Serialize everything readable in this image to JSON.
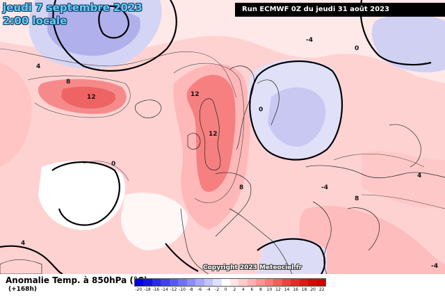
{
  "header": {
    "date": "jeudi 7 septembre 2023",
    "time": "2:00 locale",
    "run": "Run ECMWF 0Z du jeudi 31 août 2023"
  },
  "credit": "Copyright 2023 Meteociel.fr",
  "footer": {
    "title": "Anomalie Temp. à 850hPa (°C)",
    "subtitle": "(+168h)"
  },
  "legend": {
    "ticks": [
      "-20",
      "-18",
      "-16",
      "-14",
      "-12",
      "-10",
      "-8",
      "-6",
      "-4",
      "-2",
      "0",
      "2",
      "4",
      "6",
      "8",
      "10",
      "12",
      "14",
      "16",
      "18",
      "20",
      "22"
    ],
    "colors": [
      "#0000d8",
      "#1414e0",
      "#2a2ae8",
      "#4040f0",
      "#5858f4",
      "#7070f6",
      "#8c8cf8",
      "#a8a8fa",
      "#c4c4fc",
      "#e0e0fe",
      "#ffffff",
      "#ffe6e6",
      "#ffcccc",
      "#ffb0b0",
      "#ff9494",
      "#ff7878",
      "#f85c5c",
      "#f04040",
      "#e82a2a",
      "#e01818",
      "#d80808",
      "#d00000"
    ]
  },
  "contour_labels": [
    "12",
    "12",
    "12",
    "8",
    "8",
    "8",
    "4",
    "4",
    "4",
    "0",
    "0",
    "0",
    "-4",
    "-4",
    "-4"
  ],
  "colors": {
    "background": "#ffffff",
    "warm_light": "#ffd6d6",
    "warm_mid": "#ff9e9e",
    "warm_strong": "#f26a6a",
    "cool_light": "#dcdcf6",
    "cool_mid": "#b4b4ee",
    "header_text": "#5ad0ff",
    "run_box": "#000000"
  }
}
